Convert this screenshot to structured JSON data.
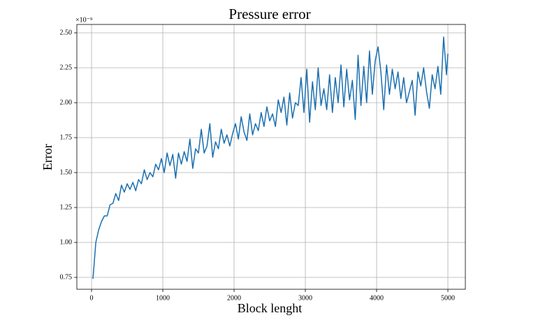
{
  "chart_data": {
    "type": "line",
    "title": "Pressure error",
    "x_label": "Block lenght",
    "y_label": "Error",
    "y_scale_label": "×10⁻⁹",
    "xlim": [
      -206,
      5245
    ],
    "xticks": [
      0,
      1000,
      2000,
      3000,
      4000,
      5000
    ],
    "ylim": [
      0.665,
      2.56
    ],
    "yticks": [
      0.75,
      {
        "value": 1,
        "label": "1.00"
      },
      1.25,
      {
        "value": 1.5,
        "label": "1.50"
      },
      1.75,
      {
        "value": 2,
        "label": "2.00"
      },
      2.25,
      {
        "value": 2.5,
        "label": "2.50"
      }
    ],
    "grid": true,
    "x": [
      20,
      60,
      100,
      140,
      180,
      220,
      260,
      300,
      340,
      380,
      420,
      460,
      500,
      540,
      580,
      620,
      660,
      700,
      740,
      780,
      820,
      860,
      900,
      940,
      980,
      1020,
      1060,
      1100,
      1140,
      1180,
      1220,
      1260,
      1300,
      1340,
      1380,
      1420,
      1460,
      1500,
      1540,
      1580,
      1620,
      1660,
      1700,
      1740,
      1780,
      1820,
      1860,
      1900,
      1940,
      1980,
      2020,
      2060,
      2100,
      2140,
      2180,
      2220,
      2260,
      2300,
      2340,
      2380,
      2420,
      2460,
      2500,
      2540,
      2580,
      2620,
      2660,
      2700,
      2740,
      2780,
      2820,
      2860,
      2900,
      2940,
      2980,
      3020,
      3060,
      3100,
      3140,
      3180,
      3220,
      3260,
      3300,
      3340,
      3380,
      3420,
      3460,
      3500,
      3540,
      3580,
      3620,
      3660,
      3700,
      3740,
      3780,
      3820,
      3860,
      3900,
      3940,
      3980,
      4020,
      4060,
      4100,
      4140,
      4180,
      4220,
      4260,
      4300,
      4340,
      4380,
      4420,
      4460,
      4500,
      4540,
      4580,
      4620,
      4660,
      4700,
      4740,
      4780,
      4820,
      4860,
      4900,
      4940,
      4980,
      5000
    ],
    "series": [
      {
        "color": "#1a6faf",
        "values": [
          0.74,
          1.0,
          1.09,
          1.15,
          1.19,
          1.19,
          1.27,
          1.28,
          1.35,
          1.3,
          1.41,
          1.36,
          1.42,
          1.38,
          1.43,
          1.37,
          1.45,
          1.42,
          1.52,
          1.45,
          1.5,
          1.47,
          1.56,
          1.52,
          1.6,
          1.5,
          1.64,
          1.55,
          1.63,
          1.46,
          1.64,
          1.56,
          1.65,
          1.58,
          1.74,
          1.53,
          1.67,
          1.64,
          1.81,
          1.64,
          1.69,
          1.85,
          1.61,
          1.72,
          1.67,
          1.81,
          1.71,
          1.77,
          1.69,
          1.78,
          1.85,
          1.74,
          1.9,
          1.79,
          1.73,
          1.92,
          1.77,
          1.85,
          1.8,
          1.93,
          1.83,
          1.97,
          1.87,
          1.92,
          1.83,
          2.02,
          1.93,
          2.04,
          1.84,
          2.07,
          1.89,
          2.0,
          1.98,
          2.18,
          1.93,
          2.24,
          1.86,
          2.15,
          1.95,
          2.25,
          1.98,
          2.1,
          1.95,
          2.2,
          1.93,
          2.18,
          2.0,
          2.27,
          1.97,
          2.24,
          2.02,
          2.16,
          1.88,
          2.34,
          1.98,
          2.26,
          2.0,
          2.37,
          2.06,
          2.3,
          2.4,
          2.22,
          1.95,
          2.27,
          2.06,
          2.24,
          2.1,
          2.22,
          2.03,
          2.18,
          2.0,
          2.08,
          2.16,
          1.91,
          2.22,
          2.12,
          2.25,
          2.08,
          1.96,
          2.2,
          2.1,
          2.26,
          2.06,
          2.47,
          2.2,
          2.35
        ]
      }
    ]
  }
}
